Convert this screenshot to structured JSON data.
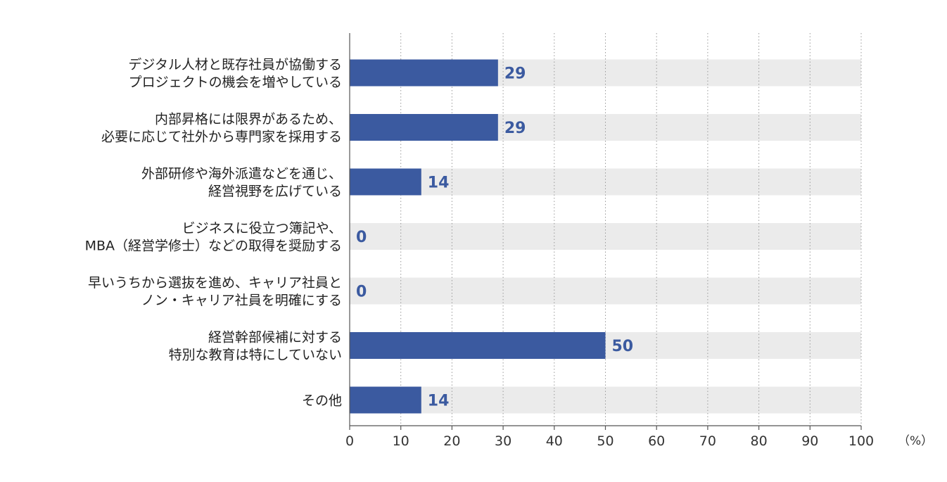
{
  "chart_data": {
    "type": "bar",
    "orientation": "horizontal",
    "categories": [
      [
        "デジタル人材と既存社員が協働する",
        "プロジェクトの機会を増やしている"
      ],
      [
        "内部昇格には限界があるため、",
        "必要に応じて社外から専門家を採用する"
      ],
      [
        "外部研修や海外派遣などを通じ、",
        "経営視野を広げている"
      ],
      [
        "ビジネスに役立つ簿記や、",
        "MBA（経営学修士）などの取得を奨励する"
      ],
      [
        "早いうちから選抜を進め、キャリア社員と",
        "ノン・キャリア社員を明確にする"
      ],
      [
        "経営幹部候補に対する",
        "特別な教育は特にしていない"
      ],
      [
        "その他"
      ]
    ],
    "values": [
      29,
      29,
      14,
      0,
      0,
      50,
      14
    ],
    "xlim": [
      0,
      100
    ],
    "xticks": [
      "0",
      "10",
      "20",
      "30",
      "40",
      "50",
      "60",
      "70",
      "80",
      "90",
      "100"
    ],
    "unit": "（%）",
    "grid": true,
    "colors": {
      "bar": "#3b5aa0",
      "track": "#ebebeb",
      "value_text": "#3b5aa0",
      "grid": "#9a9a9a"
    }
  }
}
